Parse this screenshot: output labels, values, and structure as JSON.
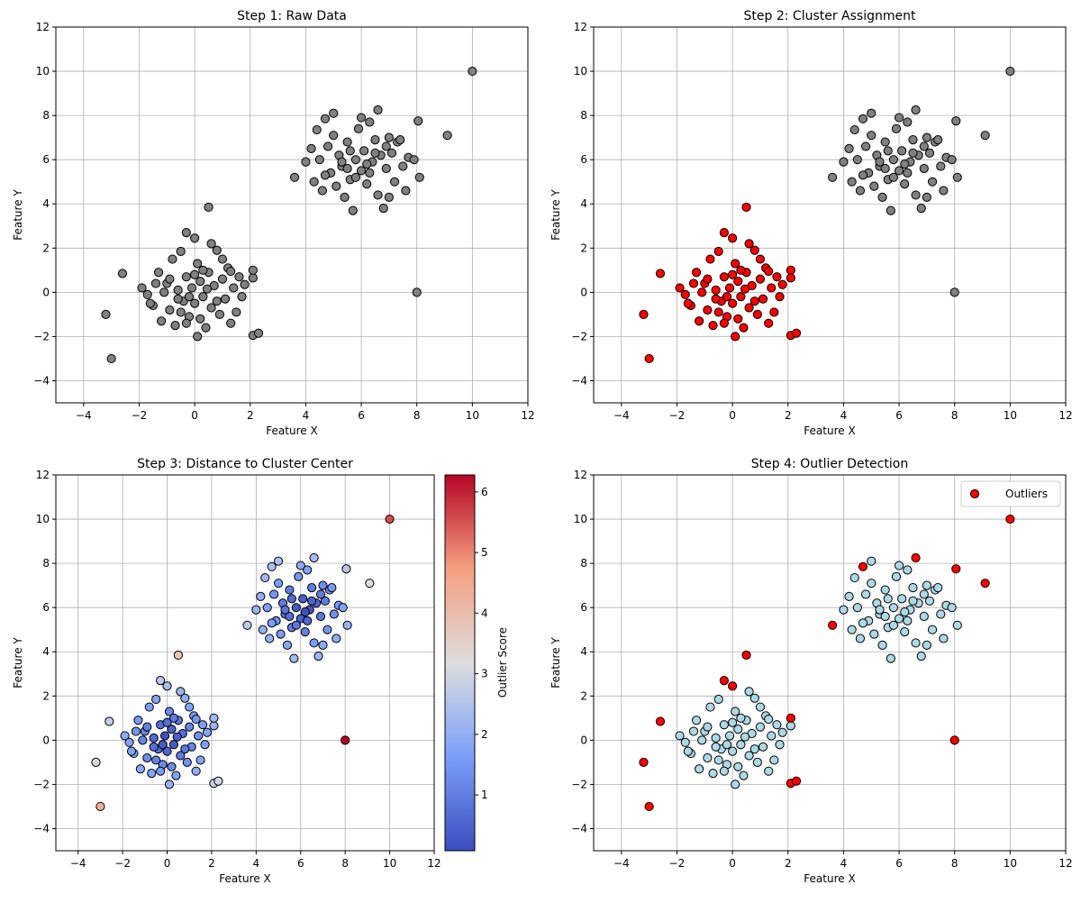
{
  "chart_data": {
    "type": "scatter",
    "xlim": [
      -5,
      12
    ],
    "ylim": [
      -5,
      12
    ],
    "xticks": [
      -4,
      -2,
      0,
      2,
      4,
      6,
      8,
      10,
      12
    ],
    "yticks": [
      -4,
      -2,
      0,
      2,
      4,
      6,
      8,
      10,
      12
    ],
    "grid": true,
    "xlabel": "Feature X",
    "ylabel": "Feature Y",
    "colors": {
      "raw": "#808080",
      "cluster0": "#ff0000",
      "cluster1": "#808080",
      "normal": "#add8e6",
      "outlier": "#ff0000",
      "edge": "#000000"
    },
    "colorbar": {
      "label": "Outlier Score",
      "range": [
        0.08,
        6.28
      ],
      "ticks": [
        1,
        2,
        3,
        4,
        5,
        6
      ],
      "colormap": "coolwarm"
    },
    "legend": {
      "label": "Outliers",
      "placement": "top-right"
    },
    "panels": [
      {
        "title": "Step 1: Raw Data",
        "mode": "raw"
      },
      {
        "title": "Step 2: Cluster Assignment",
        "mode": "cluster"
      },
      {
        "title": "Step 3: Distance to Cluster Center",
        "mode": "score"
      },
      {
        "title": "Step 4: Outlier Detection",
        "mode": "outlier"
      }
    ],
    "point_fields": [
      "x",
      "y",
      "cluster",
      "is_outlier"
    ],
    "points": [
      [
        -1.9,
        0.2,
        0,
        0
      ],
      [
        -1.7,
        -0.1,
        0,
        0
      ],
      [
        -1.5,
        -0.6,
        0,
        0
      ],
      [
        -1.3,
        0.9,
        0,
        0
      ],
      [
        -1.2,
        -1.3,
        0,
        0
      ],
      [
        -1.0,
        0.4,
        0,
        0
      ],
      [
        -0.9,
        -0.8,
        0,
        0
      ],
      [
        -0.8,
        1.5,
        0,
        0
      ],
      [
        -0.7,
        -1.5,
        0,
        0
      ],
      [
        -0.6,
        0.1,
        0,
        0
      ],
      [
        -0.5,
        1.85,
        0,
        0
      ],
      [
        -0.4,
        -0.4,
        0,
        0
      ],
      [
        -0.3,
        0.7,
        0,
        0
      ],
      [
        -0.2,
        -1.1,
        0,
        0
      ],
      [
        -0.1,
        0.2,
        0,
        0
      ],
      [
        0,
        -0.5,
        0,
        0
      ],
      [
        0.1,
        1.3,
        0,
        0
      ],
      [
        0.1,
        -2.0,
        0,
        0
      ],
      [
        0.2,
        0.5,
        0,
        0
      ],
      [
        0.3,
        -0.2,
        0,
        0
      ],
      [
        0.4,
        -1.6,
        0,
        0
      ],
      [
        0.5,
        0.9,
        0,
        0
      ],
      [
        0.6,
        2.2,
        0,
        0
      ],
      [
        0.6,
        -0.7,
        0,
        0
      ],
      [
        0.7,
        0.3,
        0,
        0
      ],
      [
        0.8,
        1.9,
        0,
        0
      ],
      [
        0.9,
        -1.0,
        0,
        0
      ],
      [
        1.0,
        0.6,
        0,
        0
      ],
      [
        1.1,
        -0.3,
        0,
        0
      ],
      [
        1.2,
        1.1,
        0,
        0
      ],
      [
        1.3,
        -1.4,
        0,
        0
      ],
      [
        1.4,
        0.2,
        0,
        0
      ],
      [
        1.5,
        -0.9,
        0,
        0
      ],
      [
        1.6,
        0.7,
        0,
        0
      ],
      [
        1.7,
        -0.2,
        0,
        0
      ],
      [
        1.8,
        0.35,
        0,
        0
      ],
      [
        2.1,
        0.65,
        0,
        0
      ],
      [
        -1.1,
        0.0,
        0,
        0
      ],
      [
        -0.9,
        0.6,
        0,
        0
      ],
      [
        -0.5,
        -0.9,
        0,
        0
      ],
      [
        0.3,
        1.0,
        0,
        0
      ],
      [
        -0.2,
        -0.2,
        0,
        0
      ],
      [
        0.2,
        -1.2,
        0,
        0
      ],
      [
        1.0,
        1.5,
        0,
        0
      ],
      [
        -1.4,
        0.4,
        0,
        0
      ],
      [
        0.8,
        -0.4,
        0,
        0
      ],
      [
        -0.6,
        -0.3,
        0,
        0
      ],
      [
        0.45,
        0.15,
        0,
        0
      ],
      [
        -0.3,
        -1.4,
        0,
        0
      ],
      [
        1.3,
        0.95,
        0,
        0
      ],
      [
        -1.6,
        -0.5,
        0,
        0
      ],
      [
        0.0,
        0.8,
        0,
        0
      ],
      [
        -3.2,
        -1.0,
        0,
        1
      ],
      [
        -3.0,
        -3.0,
        0,
        1
      ],
      [
        -2.6,
        0.85,
        0,
        1
      ],
      [
        0.5,
        3.85,
        0,
        1
      ],
      [
        -0.3,
        2.7,
        0,
        1
      ],
      [
        0.0,
        2.45,
        0,
        1
      ],
      [
        2.1,
        1.0,
        0,
        1
      ],
      [
        2.1,
        -1.95,
        0,
        1
      ],
      [
        2.3,
        -1.85,
        0,
        1
      ],
      [
        4.0,
        5.9,
        1,
        0
      ],
      [
        4.2,
        6.5,
        1,
        0
      ],
      [
        4.3,
        5.0,
        1,
        0
      ],
      [
        4.5,
        6.0,
        1,
        0
      ],
      [
        4.6,
        4.6,
        1,
        0
      ],
      [
        4.8,
        6.6,
        1,
        0
      ],
      [
        4.9,
        5.4,
        1,
        0
      ],
      [
        5.0,
        7.1,
        1,
        0
      ],
      [
        5.1,
        4.8,
        1,
        0
      ],
      [
        5.2,
        6.2,
        1,
        0
      ],
      [
        5.3,
        5.7,
        1,
        0
      ],
      [
        5.4,
        4.3,
        1,
        0
      ],
      [
        5.5,
        6.8,
        1,
        0
      ],
      [
        5.6,
        5.1,
        1,
        0
      ],
      [
        5.7,
        3.7,
        1,
        0
      ],
      [
        5.8,
        6.0,
        1,
        0
      ],
      [
        5.9,
        7.4,
        1,
        0
      ],
      [
        6.0,
        5.5,
        1,
        0
      ],
      [
        6.1,
        6.4,
        1,
        0
      ],
      [
        6.2,
        4.9,
        1,
        0
      ],
      [
        6.3,
        7.7,
        1,
        0
      ],
      [
        6.4,
        5.9,
        1,
        0
      ],
      [
        6.5,
        6.9,
        1,
        0
      ],
      [
        6.6,
        4.4,
        1,
        0
      ],
      [
        6.7,
        6.2,
        1,
        0
      ],
      [
        6.8,
        3.8,
        1,
        0
      ],
      [
        6.9,
        5.6,
        1,
        0
      ],
      [
        7.0,
        7.0,
        1,
        0
      ],
      [
        7.1,
        6.3,
        1,
        0
      ],
      [
        7.2,
        5.0,
        1,
        0
      ],
      [
        7.3,
        6.8,
        1,
        0
      ],
      [
        7.5,
        5.7,
        1,
        0
      ],
      [
        7.6,
        4.6,
        1,
        0
      ],
      [
        7.7,
        6.1,
        1,
        0
      ],
      [
        7.9,
        6.0,
        1,
        0
      ],
      [
        8.1,
        5.2,
        1,
        0
      ],
      [
        5.0,
        8.1,
        1,
        0
      ],
      [
        6.0,
        7.9,
        1,
        0
      ],
      [
        5.5,
        5.6,
        1,
        0
      ],
      [
        6.2,
        5.8,
        1,
        0
      ],
      [
        5.8,
        5.2,
        1,
        0
      ],
      [
        6.5,
        6.3,
        1,
        0
      ],
      [
        4.4,
        7.35,
        1,
        0
      ],
      [
        5.3,
        5.9,
        1,
        0
      ],
      [
        6.9,
        6.6,
        1,
        0
      ],
      [
        7.4,
        6.9,
        1,
        0
      ],
      [
        6.3,
        5.4,
        1,
        0
      ],
      [
        5.6,
        6.4,
        1,
        0
      ],
      [
        4.7,
        5.3,
        1,
        0
      ],
      [
        7.0,
        4.3,
        1,
        0
      ],
      [
        3.6,
        5.2,
        1,
        1
      ],
      [
        4.7,
        7.85,
        1,
        1
      ],
      [
        6.6,
        8.25,
        1,
        1
      ],
      [
        8.05,
        7.75,
        1,
        1
      ],
      [
        9.1,
        7.1,
        1,
        1
      ],
      [
        10,
        10,
        1,
        1
      ],
      [
        8,
        0,
        1,
        1
      ]
    ]
  }
}
